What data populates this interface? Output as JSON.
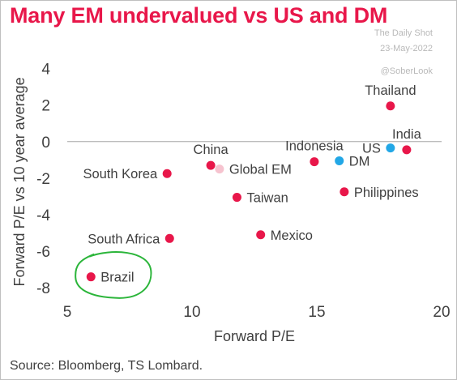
{
  "title": "Many EM undervalued vs US and DM",
  "watermark": {
    "line1": "The Daily Shot",
    "line2": "23-May-2022",
    "line3": "@SoberLook"
  },
  "source": "Source: Bloomberg, TS Lombard.",
  "colors": {
    "title": "#e8174a",
    "em_point": "#e8174a",
    "dm_point": "#22a7e6",
    "global_em_point": "#f6c3cf",
    "highlight_circle": "#2bb53a",
    "zero_line": "#a6a6a6"
  },
  "chart_data": {
    "type": "scatter",
    "xlabel": "Forward P/E",
    "ylabel": "Forward P/E vs 10 year average",
    "xlim": [
      5,
      20
    ],
    "ylim": [
      -8.7,
      4.6
    ],
    "xticks": [
      5,
      10,
      15,
      20
    ],
    "yticks": [
      4,
      2,
      0,
      -2,
      -4,
      -6,
      -8
    ],
    "grid": false,
    "zero_line": true,
    "points": [
      {
        "label": "Thailand",
        "x": 17.95,
        "y": 1.95,
        "group": "em",
        "label_pos": "above"
      },
      {
        "label": "India",
        "x": 18.6,
        "y": -0.45,
        "group": "em",
        "label_pos": "above"
      },
      {
        "label": "US",
        "x": 17.95,
        "y": -0.35,
        "group": "dm",
        "label_pos": "left"
      },
      {
        "label": "DM",
        "x": 15.9,
        "y": -1.05,
        "group": "dm",
        "label_pos": "right"
      },
      {
        "label": "Indonesia",
        "x": 14.9,
        "y": -1.1,
        "group": "em",
        "label_pos": "above"
      },
      {
        "label": "China",
        "x": 10.75,
        "y": -1.3,
        "group": "em",
        "label_pos": "above"
      },
      {
        "label": "Global EM",
        "x": 11.1,
        "y": -1.5,
        "group": "global_em",
        "label_pos": "right"
      },
      {
        "label": "South Korea",
        "x": 9.0,
        "y": -1.75,
        "group": "em",
        "label_pos": "left"
      },
      {
        "label": "Philippines",
        "x": 16.1,
        "y": -2.75,
        "group": "em",
        "label_pos": "right"
      },
      {
        "label": "Taiwan",
        "x": 11.8,
        "y": -3.05,
        "group": "em",
        "label_pos": "right"
      },
      {
        "label": "Mexico",
        "x": 12.75,
        "y": -5.1,
        "group": "em",
        "label_pos": "right"
      },
      {
        "label": "South Africa",
        "x": 9.1,
        "y": -5.3,
        "group": "em",
        "label_pos": "left"
      },
      {
        "label": "Brazil",
        "x": 5.95,
        "y": -7.4,
        "group": "em",
        "label_pos": "right",
        "highlighted": true
      }
    ]
  }
}
